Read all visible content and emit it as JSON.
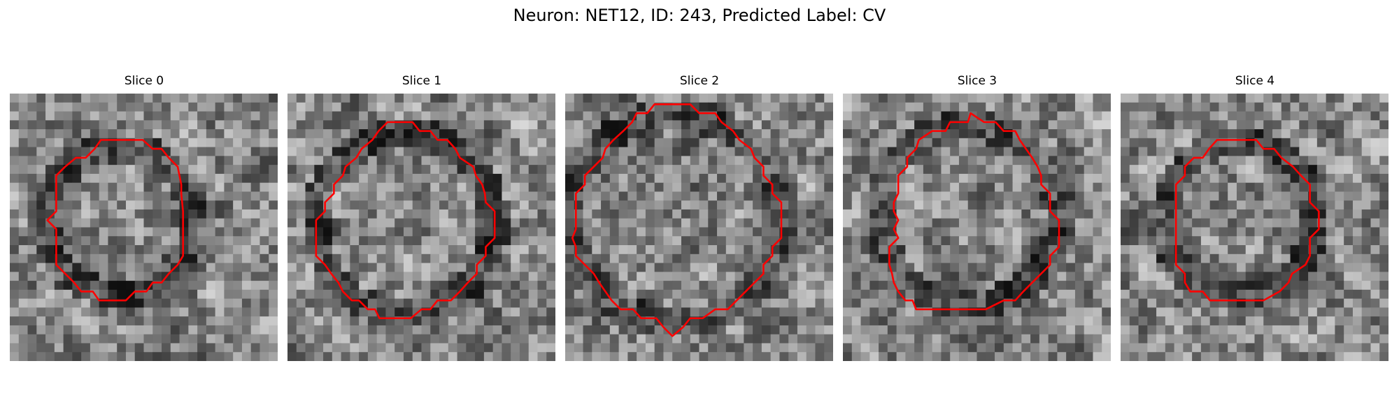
{
  "figure": {
    "title": "Neuron: NET12, ID: 243, Predicted Label: CV",
    "contour_color": "#ff0000"
  },
  "panels": [
    {
      "title": "Slice 0",
      "contour": [
        [
          13.2,
          5.2
        ],
        [
          14.9,
          5.2
        ],
        [
          16.0,
          6.2
        ],
        [
          17.0,
          6.2
        ],
        [
          17.8,
          7.2
        ],
        [
          18.8,
          8.2
        ],
        [
          19.0,
          9.2
        ],
        [
          19.2,
          10.2
        ],
        [
          19.2,
          11.2
        ],
        [
          19.3,
          12.2
        ],
        [
          19.4,
          13.2
        ],
        [
          19.4,
          14.2
        ],
        [
          19.4,
          15.2
        ],
        [
          19.4,
          16.2
        ],
        [
          19.4,
          17.2
        ],
        [
          19.4,
          18.2
        ],
        [
          18.8,
          19.2
        ],
        [
          17.8,
          20.2
        ],
        [
          17.0,
          21.2
        ],
        [
          16.0,
          21.2
        ],
        [
          15.3,
          22.2
        ],
        [
          14.0,
          22.2
        ],
        [
          13.0,
          23.2
        ],
        [
          12.0,
          23.2
        ],
        [
          11.0,
          23.2
        ],
        [
          10.0,
          23.2
        ],
        [
          9.3,
          22.2
        ],
        [
          8.0,
          22.2
        ],
        [
          7.2,
          21.2
        ],
        [
          6.2,
          20.2
        ],
        [
          5.2,
          19.2
        ],
        [
          5.2,
          18.2
        ],
        [
          5.2,
          17.2
        ],
        [
          5.2,
          16.2
        ],
        [
          5.2,
          15.2
        ],
        [
          4.2,
          14.2
        ],
        [
          5.2,
          13.2
        ],
        [
          5.2,
          12.2
        ],
        [
          5.2,
          11.2
        ],
        [
          5.2,
          10.2
        ],
        [
          5.2,
          9.2
        ],
        [
          6.2,
          8.2
        ],
        [
          7.4,
          7.2
        ],
        [
          8.5,
          7.2
        ],
        [
          9.5,
          6.2
        ],
        [
          10.2,
          5.2
        ],
        [
          11.8,
          5.2
        ]
      ]
    },
    {
      "title": "Slice 1",
      "contour": [
        [
          12.8,
          3.2
        ],
        [
          14.0,
          3.2
        ],
        [
          14.8,
          4.2
        ],
        [
          16.0,
          4.2
        ],
        [
          16.8,
          5.2
        ],
        [
          17.9,
          5.2
        ],
        [
          18.8,
          6.2
        ],
        [
          19.3,
          7.2
        ],
        [
          20.8,
          8.2
        ],
        [
          21.1,
          9.2
        ],
        [
          21.8,
          10.2
        ],
        [
          22.1,
          11.2
        ],
        [
          22.2,
          12.2
        ],
        [
          23.2,
          13.2
        ],
        [
          23.2,
          14.2
        ],
        [
          23.2,
          15.2
        ],
        [
          23.2,
          16.2
        ],
        [
          22.2,
          17.2
        ],
        [
          22.2,
          18.2
        ],
        [
          21.2,
          19.2
        ],
        [
          21.2,
          20.2
        ],
        [
          20.2,
          21.2
        ],
        [
          19.3,
          22.2
        ],
        [
          18.3,
          23.2
        ],
        [
          16.8,
          23.2
        ],
        [
          16.0,
          24.2
        ],
        [
          15.0,
          24.2
        ],
        [
          13.8,
          25.2
        ],
        [
          12.0,
          25.2
        ],
        [
          10.3,
          25.2
        ],
        [
          9.8,
          24.2
        ],
        [
          9.0,
          24.2
        ],
        [
          8.0,
          23.2
        ],
        [
          7.2,
          23.2
        ],
        [
          6.2,
          22.2
        ],
        [
          5.7,
          21.2
        ],
        [
          4.9,
          20.2
        ],
        [
          4.2,
          19.2
        ],
        [
          3.2,
          18.2
        ],
        [
          3.2,
          17.2
        ],
        [
          3.2,
          16.2
        ],
        [
          3.2,
          15.2
        ],
        [
          3.2,
          14.2
        ],
        [
          4.2,
          13.2
        ],
        [
          4.2,
          12.2
        ],
        [
          5.2,
          11.2
        ],
        [
          5.2,
          10.2
        ],
        [
          6.2,
          9.2
        ],
        [
          6.5,
          8.2
        ],
        [
          7.7,
          7.2
        ],
        [
          8.3,
          6.2
        ],
        [
          9.5,
          5.2
        ],
        [
          10.2,
          4.2
        ],
        [
          11.2,
          3.2
        ]
      ]
    },
    {
      "title": "Slice 2",
      "contour": [
        [
          10.0,
          1.2
        ],
        [
          12.0,
          1.2
        ],
        [
          14.0,
          1.2
        ],
        [
          15.0,
          2.2
        ],
        [
          16.8,
          2.2
        ],
        [
          17.5,
          3.2
        ],
        [
          18.8,
          4.2
        ],
        [
          19.5,
          5.2
        ],
        [
          20.8,
          6.2
        ],
        [
          21.2,
          7.2
        ],
        [
          22.2,
          8.2
        ],
        [
          22.2,
          9.2
        ],
        [
          23.2,
          10.2
        ],
        [
          23.2,
          11.2
        ],
        [
          24.2,
          12.2
        ],
        [
          24.2,
          13.2
        ],
        [
          24.2,
          14.2
        ],
        [
          24.2,
          15.2
        ],
        [
          24.2,
          16.2
        ],
        [
          23.2,
          17.2
        ],
        [
          23.2,
          18.2
        ],
        [
          22.2,
          19.2
        ],
        [
          22.2,
          20.2
        ],
        [
          21.2,
          21.2
        ],
        [
          20.2,
          22.2
        ],
        [
          19.2,
          23.2
        ],
        [
          18.2,
          24.2
        ],
        [
          16.8,
          24.2
        ],
        [
          15.4,
          25.2
        ],
        [
          14.0,
          25.2
        ],
        [
          13.2,
          26.2
        ],
        [
          12.0,
          27.2
        ],
        [
          11.0,
          26.2
        ],
        [
          10.2,
          25.2
        ],
        [
          8.5,
          25.2
        ],
        [
          7.6,
          24.2
        ],
        [
          6.2,
          24.2
        ],
        [
          5.2,
          23.2
        ],
        [
          4.5,
          22.2
        ],
        [
          3.8,
          21.2
        ],
        [
          3.2,
          20.2
        ],
        [
          2.2,
          19.2
        ],
        [
          1.2,
          18.2
        ],
        [
          1.2,
          17.2
        ],
        [
          0.8,
          16.2
        ],
        [
          1.2,
          15.2
        ],
        [
          1.2,
          14.2
        ],
        [
          1.2,
          13.2
        ],
        [
          1.2,
          12.2
        ],
        [
          1.2,
          11.2
        ],
        [
          2.2,
          10.2
        ],
        [
          2.2,
          9.2
        ],
        [
          3.2,
          8.2
        ],
        [
          4.2,
          7.2
        ],
        [
          4.5,
          6.2
        ],
        [
          5.4,
          5.2
        ],
        [
          6.5,
          4.2
        ],
        [
          7.5,
          3.2
        ],
        [
          8.0,
          2.2
        ],
        [
          9.2,
          2.2
        ]
      ]
    },
    {
      "title": "Slice 3",
      "contour": [
        [
          14.3,
          2.2
        ],
        [
          15.8,
          3.2
        ],
        [
          17.1,
          3.2
        ],
        [
          18.0,
          4.2
        ],
        [
          19.3,
          4.2
        ],
        [
          19.8,
          5.2
        ],
        [
          20.5,
          6.2
        ],
        [
          21.2,
          7.2
        ],
        [
          21.8,
          8.2
        ],
        [
          22.2,
          9.2
        ],
        [
          22.2,
          10.2
        ],
        [
          23.2,
          11.2
        ],
        [
          23.2,
          12.2
        ],
        [
          23.2,
          13.2
        ],
        [
          24.2,
          14.2
        ],
        [
          24.2,
          15.2
        ],
        [
          24.2,
          16.2
        ],
        [
          24.2,
          17.2
        ],
        [
          23.2,
          18.2
        ],
        [
          23.2,
          19.2
        ],
        [
          22.2,
          20.2
        ],
        [
          21.2,
          21.2
        ],
        [
          20.2,
          22.2
        ],
        [
          19.3,
          23.2
        ],
        [
          18.0,
          23.2
        ],
        [
          16.0,
          24.2
        ],
        [
          14.0,
          24.2
        ],
        [
          12.0,
          24.2
        ],
        [
          10.0,
          24.2
        ],
        [
          8.2,
          24.2
        ],
        [
          7.8,
          23.2
        ],
        [
          7.0,
          23.2
        ],
        [
          6.2,
          22.2
        ],
        [
          5.7,
          21.2
        ],
        [
          5.5,
          20.2
        ],
        [
          5.2,
          19.2
        ],
        [
          5.2,
          18.2
        ],
        [
          5.2,
          17.2
        ],
        [
          6.2,
          16.2
        ],
        [
          5.7,
          15.2
        ],
        [
          6.2,
          14.2
        ],
        [
          5.7,
          13.2
        ],
        [
          5.7,
          12.2
        ],
        [
          6.2,
          11.2
        ],
        [
          6.2,
          10.2
        ],
        [
          6.2,
          9.2
        ],
        [
          7.2,
          8.2
        ],
        [
          7.2,
          7.2
        ],
        [
          8.2,
          6.2
        ],
        [
          8.5,
          5.2
        ],
        [
          10.0,
          4.2
        ],
        [
          11.5,
          4.2
        ],
        [
          12.0,
          3.2
        ],
        [
          14.0,
          3.2
        ]
      ]
    },
    {
      "title": "Slice 4",
      "contour": [
        [
          10.8,
          5.2
        ],
        [
          12.0,
          5.2
        ],
        [
          14.0,
          5.2
        ],
        [
          15.2,
          5.2
        ],
        [
          16.0,
          6.2
        ],
        [
          17.2,
          6.2
        ],
        [
          18.0,
          7.2
        ],
        [
          19.3,
          8.2
        ],
        [
          20.2,
          9.2
        ],
        [
          21.2,
          10.2
        ],
        [
          21.2,
          11.2
        ],
        [
          21.2,
          12.2
        ],
        [
          22.2,
          13.2
        ],
        [
          22.2,
          14.2
        ],
        [
          22.2,
          15.2
        ],
        [
          21.2,
          16.2
        ],
        [
          21.2,
          17.2
        ],
        [
          21.2,
          18.2
        ],
        [
          20.7,
          19.2
        ],
        [
          19.2,
          20.2
        ],
        [
          18.8,
          21.2
        ],
        [
          17.8,
          22.2
        ],
        [
          16.0,
          23.2
        ],
        [
          14.0,
          23.2
        ],
        [
          12.0,
          23.2
        ],
        [
          10.0,
          23.2
        ],
        [
          9.2,
          22.2
        ],
        [
          7.8,
          22.2
        ],
        [
          7.2,
          21.2
        ],
        [
          7.2,
          20.2
        ],
        [
          6.2,
          19.2
        ],
        [
          6.2,
          18.2
        ],
        [
          6.2,
          17.2
        ],
        [
          6.2,
          16.2
        ],
        [
          6.2,
          15.2
        ],
        [
          6.2,
          14.2
        ],
        [
          6.2,
          13.2
        ],
        [
          6.2,
          12.2
        ],
        [
          6.2,
          11.2
        ],
        [
          6.2,
          10.2
        ],
        [
          7.2,
          9.2
        ],
        [
          7.2,
          8.2
        ],
        [
          8.2,
          7.2
        ],
        [
          9.2,
          7.2
        ],
        [
          9.9,
          6.2
        ]
      ]
    }
  ]
}
